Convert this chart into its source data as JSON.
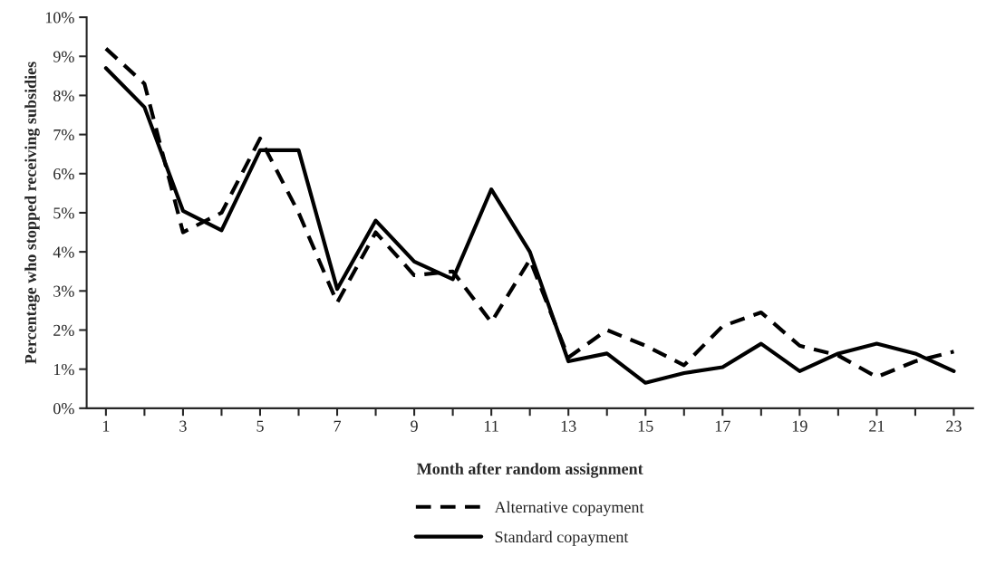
{
  "chart_data": {
    "type": "line",
    "xlabel": "Month after random assignment",
    "ylabel": "Percentage who stopped receiving subsidies",
    "categories": [
      "1",
      null,
      "3",
      null,
      "5",
      null,
      "7",
      null,
      "9",
      null,
      "11",
      null,
      "13",
      null,
      "15",
      null,
      "17",
      null,
      "19",
      null,
      "21",
      null,
      "23"
    ],
    "series": [
      {
        "name": "Alternative copayment",
        "color": "#000000",
        "line_style": "dashed",
        "values": [
          9.2,
          8.3,
          4.5,
          5.0,
          6.9,
          5.0,
          2.7,
          4.5,
          3.4,
          3.5,
          2.2,
          3.8,
          1.3,
          2.0,
          1.6,
          1.1,
          2.1,
          2.45,
          1.6,
          1.35,
          0.8,
          1.2,
          1.45
        ]
      },
      {
        "name": "Standard copayment",
        "color": "#000000",
        "line_style": "solid",
        "values": [
          8.7,
          7.7,
          5.05,
          4.55,
          6.6,
          6.6,
          3.05,
          4.8,
          3.75,
          3.3,
          5.6,
          4.0,
          1.2,
          1.4,
          0.65,
          0.9,
          1.05,
          1.65,
          0.95,
          1.4,
          1.65,
          1.4,
          0.95
        ]
      }
    ],
    "ylim": [
      0,
      10
    ],
    "yticks": [
      {
        "value": 0,
        "label": "0%"
      },
      {
        "value": 1,
        "label": "1%"
      },
      {
        "value": 2,
        "label": "2%"
      },
      {
        "value": 3,
        "label": "3%"
      },
      {
        "value": 4,
        "label": "4%"
      },
      {
        "value": 5,
        "label": "5%"
      },
      {
        "value": 6,
        "label": "6%"
      },
      {
        "value": 7,
        "label": "7%"
      },
      {
        "value": 8,
        "label": "8%"
      },
      {
        "value": 9,
        "label": "9%"
      },
      {
        "value": 10,
        "label": "10%"
      }
    ],
    "grid": false,
    "legend": "bottom",
    "marker": "none"
  }
}
